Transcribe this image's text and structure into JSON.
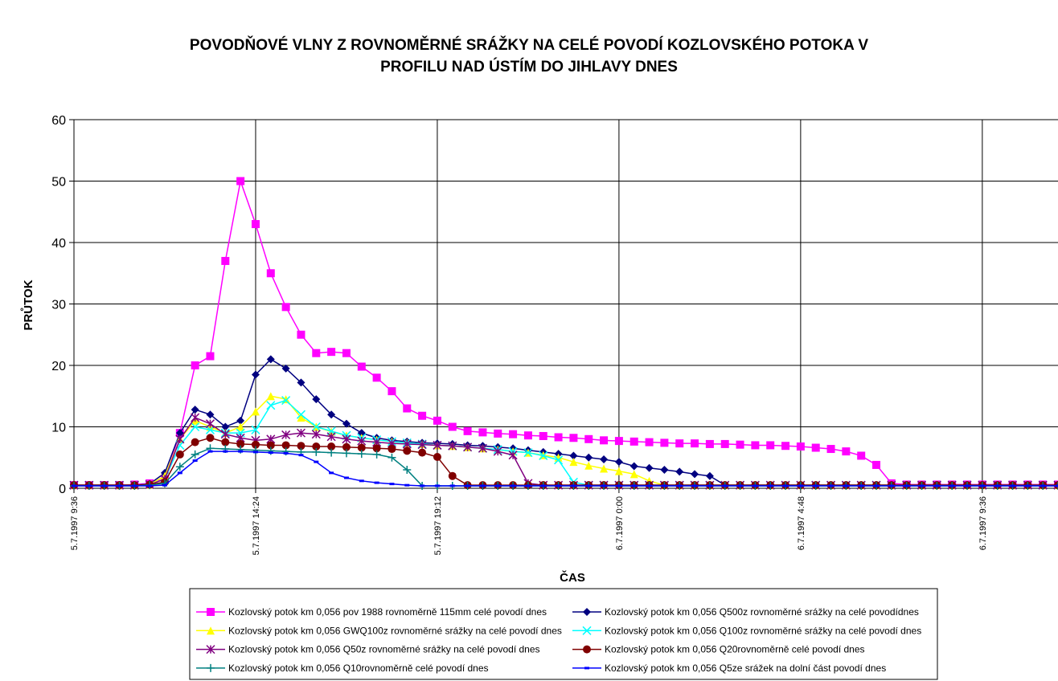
{
  "chart_data": {
    "type": "line",
    "title": "POVODŇOVÉ VLNY Z ROVNOMĚRNÉ SRÁŽKY NA CELÉ POVODÍ KOZLOVSKÉHO POTOKA V PROFILU NAD ÚSTÍM DO JIHLAVY DNES",
    "xlabel": "ČAS",
    "ylabel": "PRŮTOK",
    "x": [
      9.6,
      10,
      10.4,
      10.8,
      11.2,
      11.6,
      12,
      12.4,
      12.8,
      13.2,
      13.6,
      14,
      14.4,
      14.8,
      15.2,
      15.6,
      16,
      16.4,
      16.8,
      17.2,
      17.6,
      18,
      18.4,
      18.8,
      19.2,
      19.6,
      20,
      20.4,
      20.8,
      21.2,
      21.6,
      22,
      22.4,
      22.8,
      23.2,
      23.6,
      24,
      24.4,
      24.8,
      25.2,
      25.6,
      26,
      26.4,
      26.8,
      27.2,
      27.6,
      28,
      28.4,
      28.8,
      29.2,
      29.6,
      30,
      30.4,
      30.8,
      31.2,
      31.6,
      32,
      32.4,
      32.8,
      33.2,
      33.6,
      34,
      34.4,
      34.8,
      35.2,
      35.6
    ],
    "xlim": [
      9.6,
      35.6
    ],
    "xticks": [
      {
        "value": 9.6,
        "label": "5.7.1997 9:36"
      },
      {
        "value": 14.4,
        "label": "5.7.1997 14:24"
      },
      {
        "value": 19.2,
        "label": "5.7.1997 19:12"
      },
      {
        "value": 24,
        "label": "6.7.1997 0:00"
      },
      {
        "value": 28.8,
        "label": "6.7.1997 4:48"
      },
      {
        "value": 33.6,
        "label": "6.7.1997 9:36"
      }
    ],
    "ylim": [
      0,
      60
    ],
    "yticks": [
      0,
      10,
      20,
      30,
      40,
      50,
      60
    ],
    "grid": true,
    "series": [
      {
        "name": "Kozlovský potok km 0,056 pov 1988 rovnoměrně 115mm celé povodí dnes",
        "color": "#ff00ff",
        "marker": "square",
        "values": [
          0.5,
          0.5,
          0.5,
          0.5,
          0.6,
          0.8,
          1.5,
          9,
          20,
          21.5,
          37,
          50,
          43,
          35,
          29.5,
          25,
          22,
          22.2,
          22,
          19.8,
          18,
          15.8,
          13,
          11.8,
          11,
          10,
          9.3,
          9.1,
          8.9,
          8.8,
          8.6,
          8.5,
          8.3,
          8.2,
          8,
          7.8,
          7.7,
          7.6,
          7.5,
          7.4,
          7.3,
          7.3,
          7.2,
          7.2,
          7.1,
          7,
          7,
          6.9,
          6.8,
          6.6,
          6.4,
          6,
          5.3,
          3.8,
          0.8,
          0.6,
          0.6,
          0.6,
          0.6,
          0.6,
          0.6,
          0.6,
          0.6,
          0.6,
          0.6,
          0.6
        ]
      },
      {
        "name": "Kozlovský potok km 0,056 Q500z rovnoměrné srážky na celé povodídnes",
        "color": "#000080",
        "marker": "diamond",
        "values": [
          0.5,
          0.5,
          0.5,
          0.5,
          0.5,
          0.7,
          2.5,
          9,
          12.8,
          12,
          10,
          11,
          18.5,
          21,
          19.5,
          17.2,
          14.5,
          12,
          10.5,
          9,
          8.2,
          7.8,
          7.6,
          7.4,
          7.3,
          7.2,
          7,
          6.9,
          6.7,
          6.5,
          6.2,
          5.9,
          5.6,
          5.3,
          5,
          4.7,
          4.3,
          3.6,
          3.3,
          3,
          2.7,
          2.3,
          2,
          0.5,
          0.5,
          0.5,
          0.5,
          0.5,
          0.5,
          0.5,
          0.5,
          0.5,
          0.5,
          0.5,
          0.5,
          0.5,
          0.5,
          0.5,
          0.5,
          0.5,
          0.5,
          0.5,
          0.5,
          0.5,
          0.5,
          0.5
        ]
      },
      {
        "name": "Kozlovský potok km 0,056 GWQ100z rovnoměrné srážky na celé povodí dnes",
        "color": "#ffff00",
        "marker": "triangle",
        "values": [
          0.5,
          0.5,
          0.5,
          0.5,
          0.5,
          0.6,
          2,
          8,
          11,
          10,
          9,
          10,
          12.5,
          15,
          14.5,
          11.5,
          10,
          9.2,
          8.6,
          8.2,
          7.9,
          7.6,
          7.4,
          7.2,
          7,
          6.9,
          6.7,
          6.5,
          6.3,
          6,
          5.8,
          5.4,
          5,
          4.3,
          3.7,
          3.2,
          2.8,
          2.3,
          1.2,
          0.5,
          0.5,
          0.5,
          0.5,
          0.5,
          0.5,
          0.5,
          0.5,
          0.5,
          0.5,
          0.5,
          0.5,
          0.5,
          0.5,
          0.5,
          0.5,
          0.5,
          0.5,
          0.5,
          0.5,
          0.5,
          0.5,
          0.5,
          0.5,
          0.5,
          0.5,
          0.5
        ]
      },
      {
        "name": "Kozlovský potok km 0,056 Q100z rovnoměrné srážky na celé povodí dnes",
        "color": "#00ffff",
        "marker": "x",
        "values": [
          0.5,
          0.5,
          0.5,
          0.5,
          0.5,
          0.6,
          1.5,
          7,
          10,
          9.5,
          9,
          9,
          9.5,
          13.5,
          14.3,
          12,
          10,
          9.3,
          8.6,
          8.2,
          7.9,
          7.6,
          7.4,
          7.2,
          7,
          6.9,
          6.7,
          6.5,
          6.3,
          6,
          5.8,
          5.3,
          4.6,
          1,
          0.5,
          0.5,
          0.5,
          0.5,
          0.5,
          0.5,
          0.5,
          0.5,
          0.5,
          0.5,
          0.5,
          0.5,
          0.5,
          0.5,
          0.5,
          0.5,
          0.5,
          0.5,
          0.5,
          0.5,
          0.5,
          0.5,
          0.5,
          0.5,
          0.5,
          0.5,
          0.5,
          0.5,
          0.5,
          0.5,
          0.5,
          0.5
        ]
      },
      {
        "name": "Kozlovský potok km 0,056 Q50z rovnoměrné srážky na celé povodí dnes",
        "color": "#800080",
        "marker": "asterisk",
        "values": [
          0.5,
          0.5,
          0.5,
          0.5,
          0.5,
          0.6,
          1.5,
          8,
          11.5,
          10.5,
          8.8,
          8.2,
          7.8,
          8,
          8.7,
          9,
          8.8,
          8.4,
          8,
          7.7,
          7.5,
          7.3,
          7.2,
          7.1,
          7,
          6.9,
          6.7,
          6.5,
          6,
          5.4,
          0.8,
          0.5,
          0.5,
          0.5,
          0.5,
          0.5,
          0.5,
          0.5,
          0.5,
          0.5,
          0.5,
          0.5,
          0.5,
          0.5,
          0.5,
          0.5,
          0.5,
          0.5,
          0.5,
          0.5,
          0.5,
          0.5,
          0.5,
          0.5,
          0.5,
          0.5,
          0.5,
          0.5,
          0.5,
          0.5,
          0.5,
          0.5,
          0.5,
          0.5,
          0.5,
          0.5
        ]
      },
      {
        "name": "Kozlovský potok km 0,056 Q20rovnoměrně celé povodí dnes",
        "color": "#800000",
        "marker": "circle",
        "values": [
          0.5,
          0.5,
          0.5,
          0.5,
          0.5,
          0.6,
          1,
          5.5,
          7.5,
          8.2,
          7.5,
          7.2,
          7.1,
          7,
          7,
          6.9,
          6.8,
          6.8,
          6.7,
          6.6,
          6.5,
          6.4,
          6.1,
          5.8,
          5.1,
          2,
          0.5,
          0.5,
          0.5,
          0.5,
          0.5,
          0.5,
          0.5,
          0.5,
          0.5,
          0.5,
          0.5,
          0.5,
          0.5,
          0.5,
          0.5,
          0.5,
          0.5,
          0.5,
          0.5,
          0.5,
          0.5,
          0.5,
          0.5,
          0.5,
          0.5,
          0.5,
          0.5,
          0.5,
          0.5,
          0.5,
          0.5,
          0.5,
          0.5,
          0.5,
          0.5,
          0.5,
          0.5,
          0.5,
          0.5,
          0.5
        ]
      },
      {
        "name": "Kozlovský potok km 0,056 Q10rovnoměrně celé povodí dnes",
        "color": "#008080",
        "marker": "plus",
        "values": [
          0.4,
          0.4,
          0.4,
          0.4,
          0.4,
          0.5,
          0.8,
          3.5,
          5.5,
          6.5,
          6.4,
          6.3,
          6.2,
          6.1,
          6,
          5.9,
          5.9,
          5.8,
          5.7,
          5.6,
          5.5,
          5,
          3,
          0.4,
          0.4,
          0.4,
          0.4,
          0.4,
          0.4,
          0.4,
          0.4,
          0.4,
          0.4,
          0.4,
          0.4,
          0.4,
          0.4,
          0.4,
          0.4,
          0.4,
          0.4,
          0.4,
          0.4,
          0.4,
          0.4,
          0.4,
          0.4,
          0.4,
          0.4,
          0.4,
          0.4,
          0.4,
          0.4,
          0.4,
          0.4,
          0.4,
          0.4,
          0.4,
          0.4,
          0.4,
          0.4,
          0.4,
          0.4,
          0.4,
          0.4,
          0.4
        ]
      },
      {
        "name": "Kozlovský potok km 0,056 Q5ze srážek na dolní část povodí dnes",
        "color": "#0000ff",
        "marker": "dash",
        "values": [
          0.4,
          0.4,
          0.4,
          0.4,
          0.4,
          0.4,
          0.5,
          2.5,
          4.5,
          6,
          6,
          6,
          5.9,
          5.8,
          5.7,
          5.4,
          4.3,
          2.5,
          1.7,
          1.2,
          0.9,
          0.7,
          0.5,
          0.4,
          0.4,
          0.4,
          0.4,
          0.4,
          0.4,
          0.4,
          0.4,
          0.4,
          0.4,
          0.4,
          0.4,
          0.4,
          0.4,
          0.4,
          0.4,
          0.4,
          0.4,
          0.4,
          0.4,
          0.4,
          0.4,
          0.4,
          0.4,
          0.4,
          0.4,
          0.4,
          0.4,
          0.4,
          0.4,
          0.4,
          0.4,
          0.4,
          0.4,
          0.4,
          0.4,
          0.4,
          0.4,
          0.4,
          0.4,
          0.4,
          0.4,
          0.4
        ]
      }
    ]
  }
}
